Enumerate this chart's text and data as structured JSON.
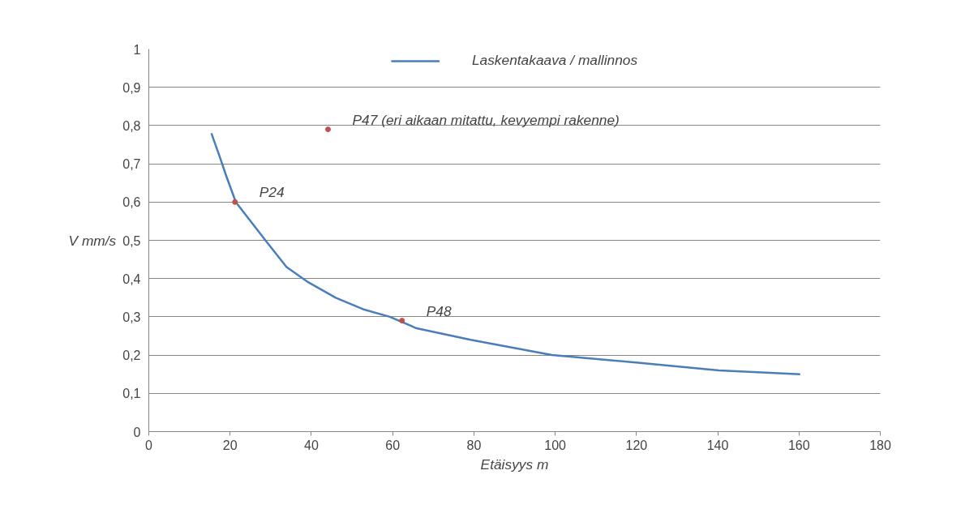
{
  "chart_data": {
    "type": "line",
    "xlabel": "Etäisyys m",
    "ylabel": "V mm/s",
    "series": [
      {
        "name": "Laskentakaava / mallinnos",
        "color": "#4a7ebb",
        "x": [
          15.4,
          17.4,
          19,
          21.4,
          28.7,
          33.9,
          39.3,
          46,
          52.7,
          59.3,
          65.9,
          79.2,
          99.2,
          120.4,
          140.3,
          160.3
        ],
        "values": [
          0.78,
          0.72,
          0.67,
          0.6,
          0.5,
          0.43,
          0.39,
          0.35,
          0.32,
          0.3,
          0.27,
          0.24,
          0.2,
          0.18,
          0.16,
          0.15
        ]
      },
      {
        "type": "scatter",
        "marker": "circle",
        "color": "#c0504d",
        "x": [
          21.2,
          44.1,
          62.3
        ],
        "values": [
          0.6,
          0.79,
          0.29
        ]
      }
    ],
    "annotations": [
      {
        "text": "P24",
        "x": 21.2,
        "y": 0.6
      },
      {
        "text": "P47 (eri aikaan mitattu, kevyempi rakenne)",
        "x": 44.1,
        "y": 0.79
      },
      {
        "text": "P48",
        "x": 62.3,
        "y": 0.29
      }
    ],
    "xlim": [
      0,
      180
    ],
    "ylim": [
      0,
      1
    ],
    "xticks": [
      0,
      20,
      40,
      60,
      80,
      100,
      120,
      140,
      160,
      180
    ],
    "yticks": [
      0,
      {
        "value": 0.1,
        "label": "0,1"
      },
      {
        "value": 0.2,
        "label": "0,2"
      },
      {
        "value": 0.3,
        "label": "0,3"
      },
      {
        "value": 0.4,
        "label": "0,4"
      },
      {
        "value": 0.5,
        "label": "0,5"
      },
      {
        "value": 0.6,
        "label": "0,6"
      },
      {
        "value": 0.7,
        "label": "0,7"
      },
      {
        "value": 0.8,
        "label": "0,8"
      },
      {
        "value": 0.9,
        "label": "0,9"
      },
      1
    ],
    "grid": "y",
    "legend": "top"
  }
}
